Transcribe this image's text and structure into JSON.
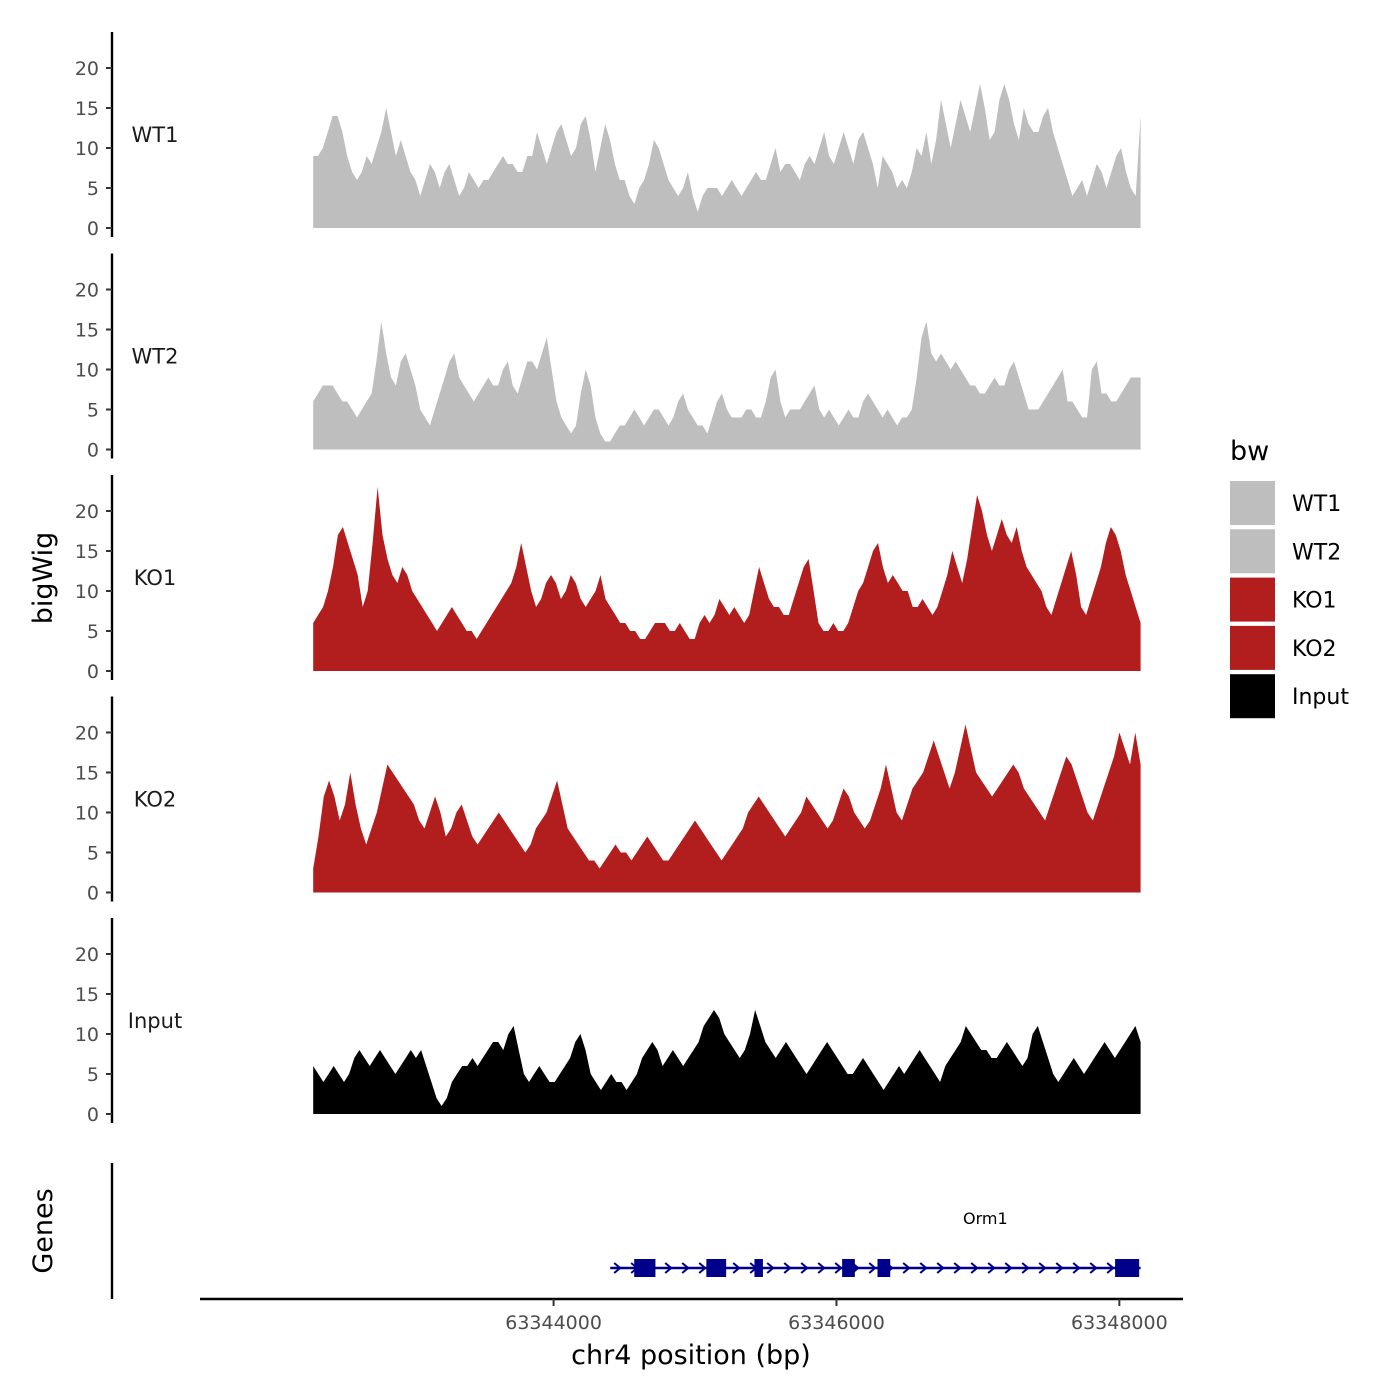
{
  "chart_data": {
    "type": "area",
    "ylabel": "bigWig",
    "xlabel": "chr4 position (bp)",
    "ylim": [
      0,
      24
    ],
    "y_ticks": [
      0,
      5,
      10,
      15,
      20
    ],
    "xlim": [
      63341500,
      63348450
    ],
    "x_ticks": [
      63344000,
      63346000,
      63348000
    ],
    "x_tick_labels": [
      "63344000",
      "63346000",
      "63348000"
    ],
    "data_start": 63342300,
    "data_end": 63348150,
    "tracks": [
      {
        "name": "WT1",
        "color": "#bebebe",
        "values": [
          9,
          9,
          10,
          12,
          14,
          14,
          12,
          9,
          7,
          6,
          7,
          9,
          8,
          10,
          12,
          15,
          12,
          9,
          11,
          9,
          7,
          6,
          4,
          6,
          8,
          7,
          5,
          7,
          8,
          6,
          4,
          5,
          7,
          6,
          5,
          6,
          6,
          7,
          8,
          9,
          8,
          8,
          7,
          7,
          9,
          9,
          12,
          10,
          8,
          10,
          12,
          13,
          11,
          9,
          10,
          13,
          14,
          11,
          7,
          10,
          13,
          11,
          8,
          6,
          6,
          4,
          3,
          5,
          6,
          8,
          11,
          10,
          8,
          6,
          5,
          4,
          5,
          7,
          4,
          2,
          4,
          5,
          5,
          5,
          4,
          5,
          6,
          5,
          4,
          5,
          6,
          7,
          6,
          6,
          8,
          10,
          7,
          8,
          8,
          7,
          6,
          8,
          9,
          8,
          10,
          12,
          9,
          8,
          10,
          12,
          10,
          8,
          11,
          12,
          10,
          8,
          5,
          9,
          8,
          7,
          5,
          6,
          5,
          7,
          10,
          9,
          12,
          8,
          11,
          16,
          13,
          10,
          13,
          16,
          14,
          12,
          15,
          18,
          15,
          11,
          12,
          16,
          18,
          16,
          13,
          11,
          15,
          13,
          12,
          12,
          14,
          15,
          12,
          10,
          8,
          6,
          4,
          5,
          6,
          4,
          6,
          8,
          7,
          5,
          7,
          9,
          10,
          7,
          5,
          4,
          14
        ]
      },
      {
        "name": "WT2",
        "color": "#bebebe",
        "values": [
          6,
          7,
          8,
          8,
          8,
          7,
          6,
          6,
          5,
          4,
          5,
          6,
          7,
          11,
          16,
          12,
          9,
          8,
          11,
          12,
          10,
          8,
          5,
          4,
          3,
          5,
          7,
          9,
          11,
          12,
          9,
          8,
          7,
          6,
          7,
          8,
          9,
          8,
          8,
          10,
          11,
          8,
          7,
          9,
          11,
          11,
          10,
          12,
          14,
          10,
          6,
          4,
          3,
          2,
          3,
          7,
          10,
          8,
          4,
          2,
          1,
          1,
          2,
          3,
          3,
          4,
          5,
          4,
          3,
          4,
          5,
          5,
          4,
          3,
          4,
          6,
          7,
          5,
          4,
          3,
          3,
          2,
          4,
          6,
          7,
          5,
          4,
          4,
          4,
          5,
          5,
          4,
          4,
          6,
          9,
          10,
          6,
          4,
          5,
          5,
          5,
          6,
          7,
          8,
          5,
          4,
          5,
          4,
          3,
          4,
          5,
          4,
          4,
          6,
          7,
          6,
          5,
          4,
          5,
          4,
          3,
          4,
          4,
          5,
          9,
          14,
          16,
          12,
          11,
          12,
          11,
          10,
          11,
          10,
          9,
          8,
          8,
          7,
          7,
          8,
          9,
          8,
          8,
          10,
          11,
          9,
          7,
          5,
          5,
          5,
          6,
          7,
          8,
          9,
          10,
          6,
          6,
          5,
          4,
          4,
          10,
          11,
          7,
          7,
          6,
          6,
          7,
          8,
          9,
          9,
          9
        ]
      },
      {
        "name": "KO1",
        "color": "#b21e1e",
        "values": [
          6,
          7,
          8,
          10,
          13,
          17,
          18,
          16,
          14,
          12,
          8,
          10,
          16,
          23,
          17,
          14,
          12,
          11,
          13,
          12,
          10,
          9,
          8,
          7,
          6,
          5,
          6,
          7,
          8,
          7,
          6,
          5,
          5,
          4,
          5,
          6,
          7,
          8,
          9,
          10,
          11,
          13,
          16,
          13,
          10,
          8,
          9,
          11,
          12,
          11,
          9,
          10,
          12,
          11,
          9,
          8,
          9,
          10,
          12,
          9,
          8,
          7,
          6,
          6,
          5,
          5,
          4,
          4,
          5,
          6,
          6,
          6,
          5,
          5,
          6,
          5,
          4,
          4,
          6,
          7,
          6,
          7,
          9,
          8,
          7,
          8,
          7,
          6,
          7,
          10,
          13,
          11,
          9,
          8,
          8,
          7,
          7,
          9,
          11,
          13,
          14,
          10,
          6,
          5,
          5,
          6,
          5,
          5,
          6,
          8,
          10,
          11,
          13,
          15,
          16,
          13,
          11,
          12,
          11,
          10,
          10,
          8,
          8,
          9,
          8,
          7,
          8,
          10,
          12,
          15,
          13,
          11,
          14,
          18,
          22,
          20,
          17,
          15,
          17,
          19,
          17,
          16,
          18,
          15,
          13,
          12,
          11,
          10,
          8,
          7,
          9,
          11,
          13,
          15,
          12,
          8,
          7,
          9,
          11,
          13,
          16,
          18,
          17,
          15,
          12,
          10,
          8,
          6
        ]
      },
      {
        "name": "KO2",
        "color": "#b21e1e",
        "values": [
          3,
          7,
          12,
          14,
          12,
          9,
          11,
          15,
          11,
          8,
          6,
          8,
          10,
          13,
          16,
          15,
          14,
          13,
          12,
          11,
          9,
          8,
          10,
          12,
          10,
          7,
          8,
          10,
          11,
          9,
          7,
          6,
          7,
          8,
          9,
          10,
          9,
          8,
          7,
          6,
          5,
          6,
          8,
          9,
          10,
          12,
          14,
          11,
          8,
          7,
          6,
          5,
          4,
          4,
          3,
          4,
          5,
          6,
          5,
          5,
          4,
          5,
          6,
          7,
          6,
          5,
          4,
          4,
          5,
          6,
          7,
          8,
          9,
          8,
          7,
          6,
          5,
          4,
          5,
          6,
          7,
          8,
          10,
          11,
          12,
          11,
          10,
          9,
          8,
          7,
          8,
          9,
          10,
          12,
          11,
          10,
          9,
          8,
          9,
          11,
          13,
          12,
          10,
          9,
          8,
          9,
          11,
          13,
          16,
          13,
          10,
          9,
          11,
          13,
          14,
          15,
          17,
          19,
          17,
          15,
          13,
          15,
          18,
          21,
          18,
          15,
          14,
          13,
          12,
          13,
          14,
          15,
          16,
          15,
          13,
          12,
          11,
          10,
          9,
          11,
          13,
          15,
          17,
          16,
          14,
          12,
          10,
          9,
          11,
          13,
          15,
          17,
          20,
          18,
          16,
          20,
          16
        ]
      },
      {
        "name": "Input",
        "color": "#000000",
        "values": [
          6,
          5,
          4,
          5,
          6,
          5,
          4,
          5,
          7,
          8,
          7,
          6,
          7,
          8,
          7,
          6,
          5,
          6,
          7,
          8,
          7,
          8,
          6,
          4,
          2,
          1,
          2,
          4,
          5,
          6,
          6,
          7,
          6,
          7,
          8,
          9,
          9,
          8,
          10,
          11,
          8,
          5,
          4,
          5,
          6,
          5,
          4,
          4,
          5,
          6,
          7,
          9,
          10,
          8,
          5,
          4,
          3,
          4,
          5,
          4,
          4,
          3,
          4,
          5,
          7,
          8,
          9,
          8,
          6,
          7,
          8,
          7,
          6,
          7,
          8,
          9,
          11,
          12,
          13,
          12,
          10,
          9,
          8,
          7,
          8,
          10,
          13,
          11,
          9,
          8,
          7,
          8,
          9,
          8,
          7,
          6,
          5,
          6,
          7,
          8,
          9,
          8,
          7,
          6,
          5,
          5,
          6,
          7,
          6,
          5,
          4,
          3,
          4,
          5,
          6,
          5,
          6,
          7,
          8,
          7,
          6,
          5,
          4,
          6,
          7,
          8,
          9,
          11,
          10,
          9,
          8,
          8,
          7,
          7,
          8,
          9,
          8,
          7,
          6,
          7,
          10,
          11,
          9,
          7,
          5,
          4,
          5,
          6,
          7,
          6,
          5,
          6,
          7,
          8,
          9,
          8,
          7,
          8,
          9,
          10,
          11,
          9
        ]
      }
    ],
    "genes_label": "Genes",
    "gene": {
      "name": "Orm1",
      "start": 63344400,
      "end": 63348150,
      "color": "#00008b",
      "exons": [
        [
          63344570,
          63344720
        ],
        [
          63345080,
          63345220
        ],
        [
          63345420,
          63345480
        ],
        [
          63346040,
          63346130
        ],
        [
          63346290,
          63346380
        ],
        [
          63347970,
          63348140
        ]
      ]
    },
    "legend": {
      "title": "bw",
      "entries": [
        {
          "label": "WT1",
          "color": "#bebebe"
        },
        {
          "label": "WT2",
          "color": "#bebebe"
        },
        {
          "label": "KO1",
          "color": "#b21e1e"
        },
        {
          "label": "KO2",
          "color": "#b21e1e"
        },
        {
          "label": "Input",
          "color": "#000000"
        }
      ]
    }
  }
}
